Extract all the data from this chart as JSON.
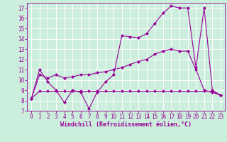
{
  "title": "",
  "xlabel": "Windchill (Refroidissement éolien,°C)",
  "background_color": "#cceedd",
  "grid_color": "#ffffff",
  "line_color": "#990099",
  "xlim": [
    -0.5,
    23.5
  ],
  "ylim": [
    7,
    17.5
  ],
  "yticks": [
    7,
    8,
    9,
    10,
    11,
    12,
    13,
    14,
    15,
    16,
    17
  ],
  "xticks": [
    0,
    1,
    2,
    3,
    4,
    5,
    6,
    7,
    8,
    9,
    10,
    11,
    12,
    13,
    14,
    15,
    16,
    17,
    18,
    19,
    20,
    21,
    22,
    23
  ],
  "series1_x": [
    0,
    1,
    2,
    3,
    4,
    5,
    6,
    7,
    8,
    9,
    10,
    11,
    12,
    13,
    14,
    15,
    16,
    17,
    18,
    19,
    20,
    21,
    22,
    23
  ],
  "series1_y": [
    8.2,
    11.0,
    9.8,
    9.0,
    7.8,
    9.0,
    8.8,
    7.2,
    8.8,
    9.8,
    10.5,
    14.3,
    14.2,
    14.1,
    14.5,
    15.5,
    16.5,
    17.2,
    17.0,
    17.0,
    11.2,
    17.0,
    9.0,
    8.5
  ],
  "series2_x": [
    0,
    1,
    2,
    3,
    4,
    5,
    6,
    7,
    8,
    9,
    10,
    11,
    12,
    13,
    14,
    15,
    16,
    17,
    18,
    19,
    20,
    21,
    22,
    23
  ],
  "series2_y": [
    8.2,
    10.5,
    10.2,
    10.5,
    10.2,
    10.3,
    10.5,
    10.5,
    10.7,
    10.8,
    11.0,
    11.2,
    11.5,
    11.8,
    12.0,
    12.5,
    12.8,
    13.0,
    12.8,
    12.8,
    11.0,
    9.0,
    8.8,
    8.5
  ],
  "series3_x": [
    0,
    1,
    2,
    3,
    4,
    5,
    6,
    7,
    8,
    9,
    10,
    11,
    12,
    13,
    14,
    15,
    16,
    17,
    18,
    19,
    20,
    21,
    22,
    23
  ],
  "series3_y": [
    8.2,
    8.9,
    8.9,
    8.9,
    8.9,
    8.9,
    8.9,
    8.9,
    8.9,
    8.9,
    8.9,
    8.9,
    8.9,
    8.9,
    8.9,
    8.9,
    8.9,
    8.9,
    8.9,
    8.9,
    8.9,
    8.9,
    8.9,
    8.5
  ],
  "tick_fontsize": 5.5,
  "xlabel_fontsize": 6.0
}
